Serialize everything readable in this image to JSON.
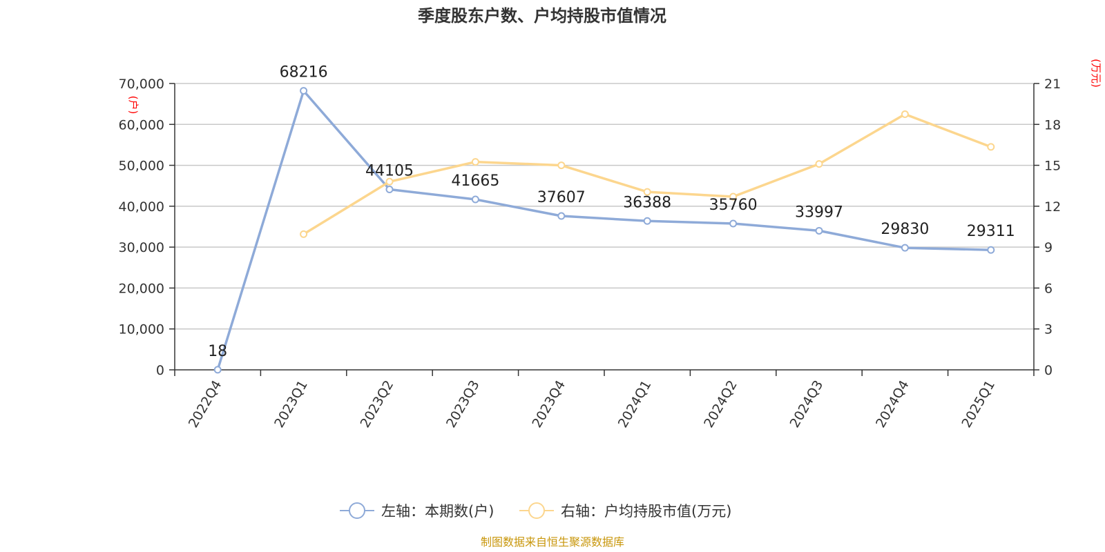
{
  "colors": {
    "left_series": "#8eaad8",
    "right_series": "#fcd68e",
    "grid": "#c8c8c8",
    "axis": "#333333",
    "unit_label": "#ff0000",
    "source": "#c8960a"
  },
  "source": "制图数据来自恒生聚源数据库",
  "chart_data": {
    "type": "line",
    "title": "季度股东户数、户均持股市值情况",
    "categories": [
      "2022Q4",
      "2023Q1",
      "2023Q2",
      "2023Q3",
      "2023Q4",
      "2024Q1",
      "2024Q2",
      "2024Q3",
      "2024Q4",
      "2025Q1"
    ],
    "left_axis": {
      "unit": "(户)",
      "ylim": [
        0,
        70000
      ],
      "ticks": [
        0,
        10000,
        20000,
        30000,
        40000,
        50000,
        60000,
        70000
      ],
      "tick_labels": [
        "0",
        "10,000",
        "20,000",
        "30,000",
        "40,000",
        "50,000",
        "60,000",
        "70,000"
      ]
    },
    "right_axis": {
      "unit": "(万元)",
      "ylim": [
        0,
        21
      ],
      "ticks": [
        0,
        3,
        6,
        9,
        12,
        15,
        18,
        21
      ],
      "tick_labels": [
        "0",
        "3",
        "6",
        "9",
        "12",
        "15",
        "18",
        "21"
      ]
    },
    "grid": true,
    "legend_position": "bottom-center",
    "series": [
      {
        "name": "左轴：本期数(户)",
        "axis": "left",
        "values": [
          18,
          68216,
          44105,
          41665,
          37607,
          36388,
          35760,
          33997,
          29830,
          29311
        ],
        "data_labels": [
          "18",
          "68216",
          "44105",
          "41665",
          "37607",
          "36388",
          "35760",
          "33997",
          "29830",
          "29311"
        ]
      },
      {
        "name": "右轴：户均持股市值(万元)",
        "axis": "right",
        "values": [
          null,
          9.95,
          13.8,
          15.25,
          15.0,
          13.05,
          12.7,
          15.1,
          18.75,
          16.35
        ]
      }
    ]
  }
}
